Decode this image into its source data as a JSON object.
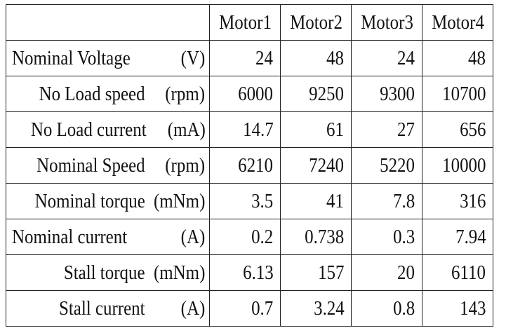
{
  "table": {
    "columns": [
      "Motor1",
      "Motor2",
      "Motor3",
      "Motor4"
    ],
    "rows": [
      {
        "parameter": "Nominal Voltage",
        "unit": "(V)",
        "values": [
          "24",
          "48",
          "24",
          "48"
        ]
      },
      {
        "parameter": "No Load speed",
        "unit": "(rpm)",
        "values": [
          "6000",
          "9250",
          "9300",
          "10700"
        ]
      },
      {
        "parameter": "No Load current",
        "unit": "(mA)",
        "values": [
          "14.7",
          "61",
          "27",
          "656"
        ]
      },
      {
        "parameter": "Nominal Speed",
        "unit": "(rpm)",
        "values": [
          "6210",
          "7240",
          "5220",
          "10000"
        ]
      },
      {
        "parameter": "Nominal torque",
        "unit": "(mNm)",
        "values": [
          "3.5",
          "41",
          "7.8",
          "316"
        ]
      },
      {
        "parameter": "Nominal current",
        "unit": "(A)",
        "values": [
          "0.2",
          "0.738",
          "0.3",
          "7.94"
        ]
      },
      {
        "parameter": "Stall torque",
        "unit": "(mNm)",
        "values": [
          "6.13",
          "157",
          "20",
          "6110"
        ]
      },
      {
        "parameter": "Stall current",
        "unit": "(A)",
        "values": [
          "0.7",
          "3.24",
          "0.8",
          "143"
        ]
      }
    ]
  }
}
